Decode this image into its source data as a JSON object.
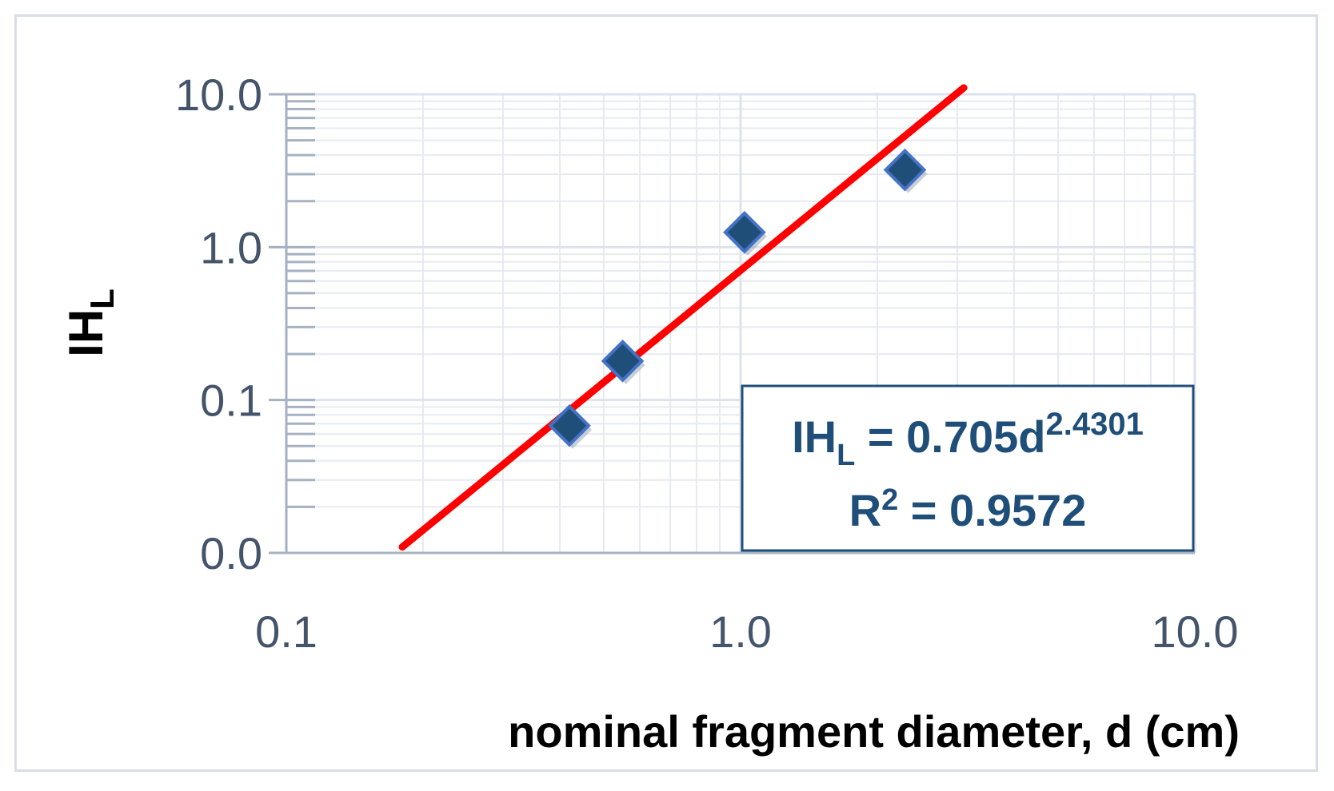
{
  "chart_data": {
    "type": "scatter",
    "title": "",
    "xlabel": "nominal fragment diameter, d (cm)",
    "ylabel": {
      "main": "IH",
      "sub": "L"
    },
    "x_scale": "log",
    "y_scale": "log",
    "xlim": [
      0.1,
      10
    ],
    "ylim": [
      0.01,
      10
    ],
    "x_tick_labels": [
      "0.1",
      "1.0",
      "10.0"
    ],
    "x_tick_values": [
      0.1,
      1,
      10
    ],
    "y_tick_labels": [
      "0.0",
      "0.1",
      "1.0",
      "10.0"
    ],
    "y_tick_values": [
      0.01,
      0.1,
      1,
      10
    ],
    "grid": true,
    "legend": "none",
    "series": [
      {
        "type": "scatter",
        "marker": "diamond",
        "points": [
          {
            "x": 0.42,
            "y": 0.068
          },
          {
            "x": 0.55,
            "y": 0.18
          },
          {
            "x": 1.02,
            "y": 1.25
          },
          {
            "x": 2.3,
            "y": 3.2
          }
        ]
      },
      {
        "type": "trendline",
        "equation": {
          "coef": 0.705,
          "exp": 2.4301
        },
        "x_range": [
          0.18,
          3.1
        ]
      }
    ],
    "annotation": {
      "lhs": "IH",
      "lhs_sub": "L",
      "eq_mid": " = 0.705d",
      "eq_exp": "2.4301",
      "r2_lhs": "R",
      "r2_sup": "2",
      "r2_rhs": " = 0.9572"
    },
    "colors": {
      "marker_fill": "#1f4e79",
      "marker_stroke": "#4472c4",
      "trendline": "#ff0000",
      "grid": "#e6ebf2",
      "axis": "#a6b1c2",
      "tick_text": "#44546a",
      "box_border": "#1f4e79",
      "eq_text": "#1f4e79"
    }
  }
}
